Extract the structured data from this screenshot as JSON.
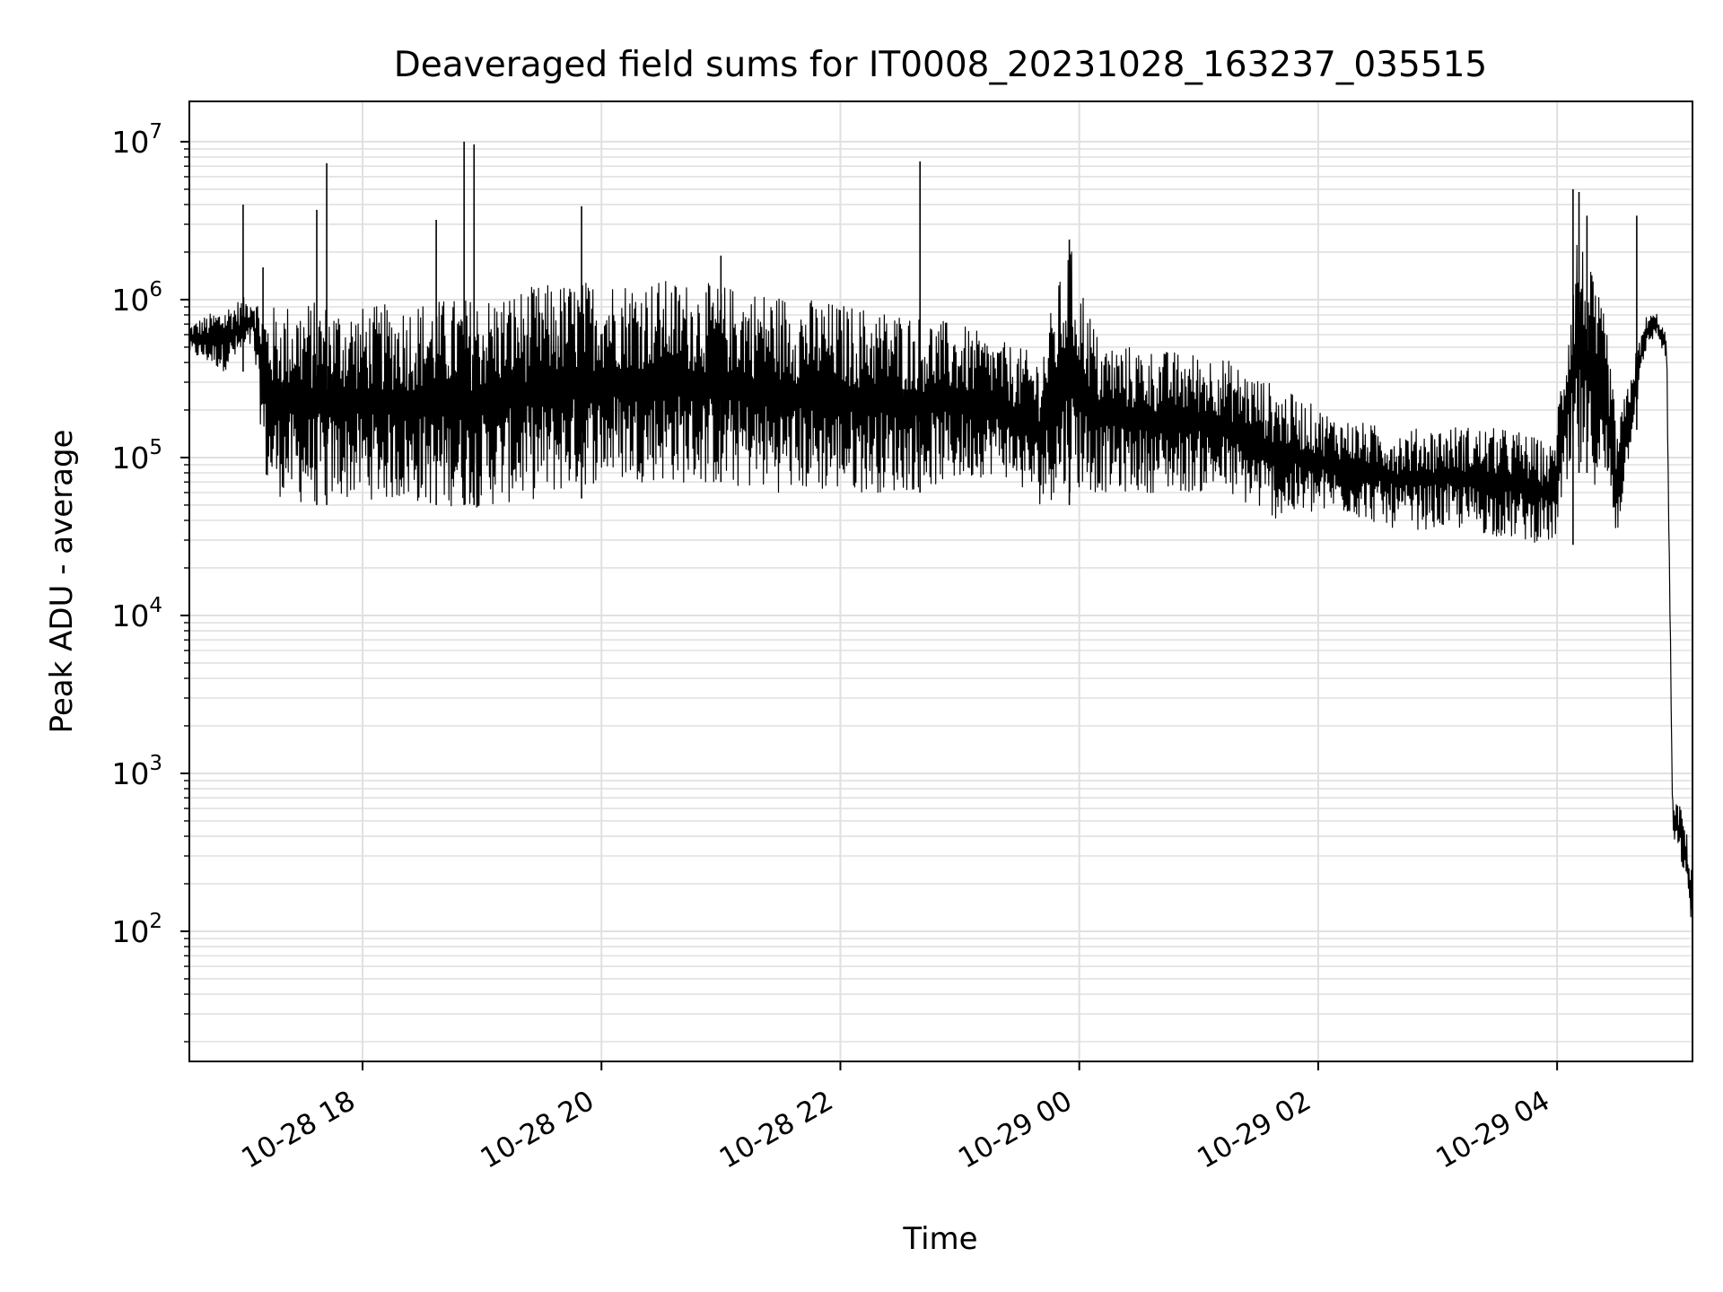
{
  "chart_data": {
    "type": "line",
    "title": "Deaveraged field sums for IT0008_20231028_163237_035515",
    "xlabel": "Time",
    "ylabel": "Peak ADU - average",
    "yscale": "log",
    "grid": true,
    "line_color": "#000000",
    "grid_color": "#e0e0e0",
    "x_range": [
      "2023-10-28 16:33",
      "2023-10-29 05:08"
    ],
    "ylim": [
      15,
      18000000
    ],
    "x_ticks": [
      {
        "time": "2023-10-28 18:00",
        "label": "10-28 18"
      },
      {
        "time": "2023-10-28 20:00",
        "label": "10-28 20"
      },
      {
        "time": "2023-10-28 22:00",
        "label": "10-28 22"
      },
      {
        "time": "2023-10-29 00:00",
        "label": "10-29 00"
      },
      {
        "time": "2023-10-29 02:00",
        "label": "10-29 02"
      },
      {
        "time": "2023-10-29 04:00",
        "label": "10-29 04"
      }
    ],
    "y_ticks": [
      {
        "value": 100,
        "base": "10",
        "exp": "2"
      },
      {
        "value": 1000,
        "base": "10",
        "exp": "3"
      },
      {
        "value": 10000,
        "base": "10",
        "exp": "4"
      },
      {
        "value": 100000,
        "base": "10",
        "exp": "5"
      },
      {
        "value": 1000000,
        "base": "10",
        "exp": "6"
      },
      {
        "value": 10000000,
        "base": "10",
        "exp": "7"
      }
    ],
    "envelope": [
      {
        "time": "2023-10-28 16:33",
        "low": 450000,
        "high": 700000
      },
      {
        "time": "2023-10-28 16:50",
        "low": 350000,
        "high": 900000
      },
      {
        "time": "2023-10-28 17:05",
        "low": 500000,
        "high": 1100000
      },
      {
        "time": "2023-10-28 17:12",
        "low": 60000,
        "high": 900000
      },
      {
        "time": "2023-10-28 17:30",
        "low": 50000,
        "high": 1000000
      },
      {
        "time": "2023-10-28 18:00",
        "low": 55000,
        "high": 900000
      },
      {
        "time": "2023-10-28 18:30",
        "low": 50000,
        "high": 1000000
      },
      {
        "time": "2023-10-28 19:00",
        "low": 48000,
        "high": 1050000
      },
      {
        "time": "2023-10-28 19:30",
        "low": 55000,
        "high": 1250000
      },
      {
        "time": "2023-10-28 20:00",
        "low": 70000,
        "high": 1350000
      },
      {
        "time": "2023-10-28 20:30",
        "low": 70000,
        "high": 1350000
      },
      {
        "time": "2023-10-28 21:00",
        "low": 65000,
        "high": 1250000
      },
      {
        "time": "2023-10-28 21:30",
        "low": 60000,
        "high": 1100000
      },
      {
        "time": "2023-10-28 22:00",
        "low": 60000,
        "high": 950000
      },
      {
        "time": "2023-10-28 22:30",
        "low": 60000,
        "high": 850000
      },
      {
        "time": "2023-10-28 23:00",
        "low": 70000,
        "high": 700000
      },
      {
        "time": "2023-10-28 23:20",
        "low": 80000,
        "high": 550000
      },
      {
        "time": "2023-10-28 23:40",
        "low": 50000,
        "high": 450000
      },
      {
        "time": "2023-10-28 23:55",
        "low": 60000,
        "high": 2300000
      },
      {
        "time": "2023-10-29 00:10",
        "low": 60000,
        "high": 550000
      },
      {
        "time": "2023-10-29 00:40",
        "low": 60000,
        "high": 480000
      },
      {
        "time": "2023-10-29 01:10",
        "low": 60000,
        "high": 450000
      },
      {
        "time": "2023-10-29 01:40",
        "low": 40000,
        "high": 280000
      },
      {
        "time": "2023-10-29 02:10",
        "low": 45000,
        "high": 180000
      },
      {
        "time": "2023-10-29 02:40",
        "low": 35000,
        "high": 150000
      },
      {
        "time": "2023-10-29 03:10",
        "low": 35000,
        "high": 160000
      },
      {
        "time": "2023-10-29 03:40",
        "low": 30000,
        "high": 150000
      },
      {
        "time": "2023-10-29 03:58",
        "low": 28000,
        "high": 120000
      },
      {
        "time": "2023-10-29 04:10",
        "low": 80000,
        "high": 3000000
      },
      {
        "time": "2023-10-29 04:25",
        "low": 60000,
        "high": 700000
      },
      {
        "time": "2023-10-29 04:30",
        "low": 30000,
        "high": 150000
      },
      {
        "time": "2023-10-29 04:38",
        "low": 150000,
        "high": 400000
      },
      {
        "time": "2023-10-29 04:45",
        "low": 500000,
        "high": 800000
      },
      {
        "time": "2023-10-29 04:50",
        "low": 600000,
        "high": 820000
      },
      {
        "time": "2023-10-29 04:55",
        "low": 400000,
        "high": 600000
      },
      {
        "time": "2023-10-29 04:58",
        "low": 400,
        "high": 700
      },
      {
        "time": "2023-10-29 05:03",
        "low": 250,
        "high": 600
      },
      {
        "time": "2023-10-29 05:08",
        "low": 100,
        "high": 250
      }
    ],
    "spikes": [
      {
        "time": "2023-10-28 17:00",
        "value": 4000000
      },
      {
        "time": "2023-10-28 17:10",
        "value": 1600000
      },
      {
        "time": "2023-10-28 17:37",
        "value": 3700000
      },
      {
        "time": "2023-10-28 17:42",
        "value": 7300000
      },
      {
        "time": "2023-10-28 18:37",
        "value": 3200000
      },
      {
        "time": "2023-10-28 18:51",
        "value": 10000000
      },
      {
        "time": "2023-10-28 18:56",
        "value": 9600000
      },
      {
        "time": "2023-10-28 19:50",
        "value": 3900000
      },
      {
        "time": "2023-10-28 21:00",
        "value": 1900000
      },
      {
        "time": "2023-10-28 22:40",
        "value": 7500000
      },
      {
        "time": "2023-10-28 23:55",
        "value": 2400000
      },
      {
        "time": "2023-10-29 04:08",
        "value": 5000000
      },
      {
        "time": "2023-10-29 04:11",
        "value": 4800000
      },
      {
        "time": "2023-10-29 04:15",
        "value": 3400000
      },
      {
        "time": "2023-10-29 04:40",
        "value": 3400000
      }
    ]
  }
}
